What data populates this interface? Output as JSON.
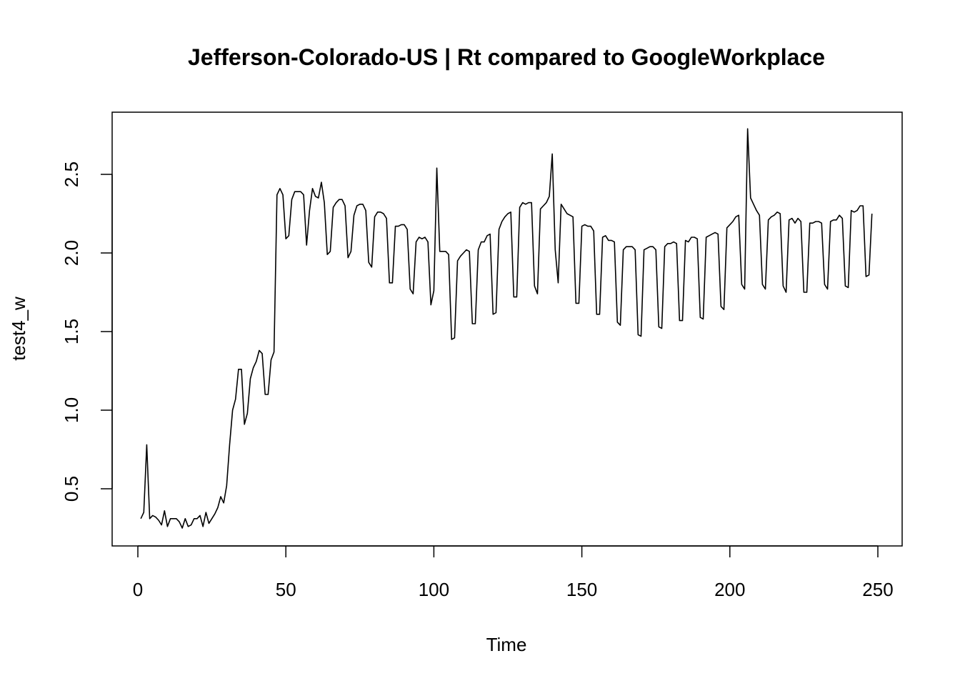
{
  "chart_data": {
    "type": "line",
    "title": "Jefferson-Colorado-US | Rt compared to GoogleWorkplace",
    "xlabel": "Time",
    "ylabel": "test4_w",
    "xlim": [
      1,
      248
    ],
    "ylim": [
      0.24,
      2.8
    ],
    "x_ticks": [
      0,
      50,
      100,
      150,
      200,
      250
    ],
    "y_ticks": [
      0.5,
      1.0,
      1.5,
      2.0,
      2.5
    ],
    "x_tick_labels": [
      "0",
      "50",
      "100",
      "150",
      "200",
      "250"
    ],
    "y_tick_labels": [
      "0.5",
      "1.0",
      "1.5",
      "2.0",
      "2.5"
    ],
    "grid": false,
    "legend": "none",
    "line_color": "#000000",
    "series": [
      {
        "x_start": 1,
        "values": [
          0.31,
          0.35,
          0.78,
          0.31,
          0.33,
          0.32,
          0.3,
          0.27,
          0.36,
          0.26,
          0.31,
          0.31,
          0.31,
          0.29,
          0.25,
          0.31,
          0.26,
          0.27,
          0.31,
          0.31,
          0.33,
          0.26,
          0.35,
          0.28,
          0.31,
          0.34,
          0.38,
          0.45,
          0.41,
          0.52,
          0.78,
          1.0,
          1.07,
          1.26,
          1.26,
          0.91,
          0.98,
          1.2,
          1.27,
          1.31,
          1.38,
          1.36,
          1.1,
          1.1,
          1.32,
          1.37,
          2.37,
          2.41,
          2.37,
          2.09,
          2.11,
          2.34,
          2.39,
          2.39,
          2.39,
          2.37,
          2.05,
          2.27,
          2.41,
          2.36,
          2.35,
          2.45,
          2.32,
          1.99,
          2.01,
          2.29,
          2.32,
          2.34,
          2.34,
          2.3,
          1.97,
          2.01,
          2.24,
          2.3,
          2.31,
          2.31,
          2.27,
          1.94,
          1.91,
          2.23,
          2.26,
          2.26,
          2.25,
          2.22,
          1.81,
          1.81,
          2.17,
          2.17,
          2.18,
          2.18,
          2.15,
          1.77,
          1.74,
          2.07,
          2.1,
          2.09,
          2.1,
          2.07,
          1.67,
          1.76,
          2.54,
          2.01,
          2.01,
          2.01,
          1.99,
          1.45,
          1.46,
          1.95,
          1.98,
          2.0,
          2.02,
          2.01,
          1.55,
          1.55,
          2.02,
          2.07,
          2.07,
          2.11,
          2.12,
          1.61,
          1.62,
          2.15,
          2.2,
          2.23,
          2.25,
          2.26,
          1.72,
          1.72,
          2.29,
          2.32,
          2.31,
          2.32,
          2.32,
          1.79,
          1.74,
          2.28,
          2.3,
          2.32,
          2.36,
          2.63,
          2.02,
          1.81,
          2.31,
          2.28,
          2.25,
          2.24,
          2.23,
          1.68,
          1.68,
          2.17,
          2.18,
          2.17,
          2.17,
          2.14,
          1.61,
          1.61,
          2.1,
          2.11,
          2.08,
          2.08,
          2.07,
          1.56,
          1.54,
          2.02,
          2.04,
          2.04,
          2.04,
          2.02,
          1.48,
          1.47,
          2.02,
          2.03,
          2.04,
          2.04,
          2.02,
          1.53,
          1.52,
          2.04,
          2.06,
          2.06,
          2.07,
          2.06,
          1.57,
          1.57,
          2.08,
          2.07,
          2.1,
          2.1,
          2.09,
          1.59,
          1.58,
          2.1,
          2.11,
          2.12,
          2.13,
          2.12,
          1.66,
          1.64,
          2.16,
          2.18,
          2.2,
          2.23,
          2.24,
          1.8,
          1.77,
          2.79,
          2.35,
          2.31,
          2.27,
          2.24,
          1.8,
          1.77,
          2.21,
          2.23,
          2.24,
          2.26,
          2.25,
          1.79,
          1.75,
          2.21,
          2.22,
          2.19,
          2.22,
          2.2,
          1.75,
          1.75,
          2.19,
          2.19,
          2.2,
          2.2,
          2.19,
          1.8,
          1.77,
          2.2,
          2.21,
          2.21,
          2.24,
          2.22,
          1.79,
          1.78,
          2.27,
          2.26,
          2.27,
          2.3,
          2.3,
          1.85,
          1.86,
          2.25
        ]
      }
    ]
  }
}
